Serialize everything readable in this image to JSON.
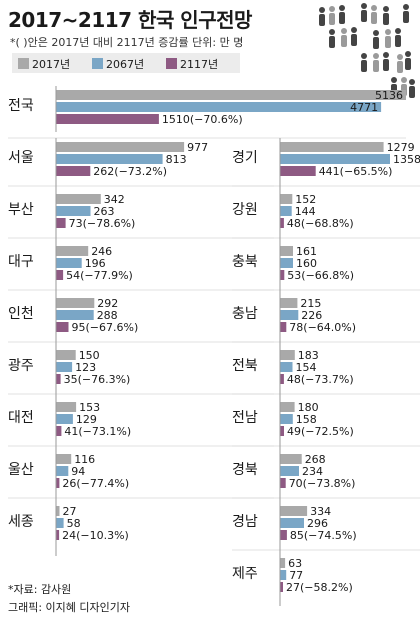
{
  "title": "2017~2117 한국 인구전망",
  "note": "*( )안은 2017년 대비 2117년 증감률 단위: 만 명",
  "legend": [
    {
      "label": "2017년",
      "color": "#a9a9a9"
    },
    {
      "label": "2067년",
      "color": "#7aa6c6"
    },
    {
      "label": "2117년",
      "color": "#8e5a83"
    }
  ],
  "footer": {
    "source": "*자료: 감사원",
    "credit": "그래픽: 이지혜 디자인기자"
  },
  "chart_data": {
    "type": "bar",
    "orientation": "horizontal",
    "series_names": [
      "2017년",
      "2067년",
      "2117년"
    ],
    "regions": [
      {
        "name": "전국",
        "values": [
          5136,
          4771,
          1510
        ],
        "change": "1510(−70.6%)"
      },
      {
        "name": "서울",
        "values": [
          977,
          813,
          262
        ],
        "change": "262(−73.2%)"
      },
      {
        "name": "부산",
        "values": [
          342,
          263,
          73
        ],
        "change": "73(−78.6%)"
      },
      {
        "name": "대구",
        "values": [
          246,
          196,
          54
        ],
        "change": "54(−77.9%)"
      },
      {
        "name": "인천",
        "values": [
          292,
          288,
          95
        ],
        "change": "95(−67.6%)"
      },
      {
        "name": "광주",
        "values": [
          150,
          123,
          35
        ],
        "change": "35(−76.3%)"
      },
      {
        "name": "대전",
        "values": [
          153,
          129,
          41
        ],
        "change": "41(−73.1%)"
      },
      {
        "name": "울산",
        "values": [
          116,
          94,
          26
        ],
        "change": "26(−77.4%)"
      },
      {
        "name": "세종",
        "values": [
          27,
          58,
          24
        ],
        "change": "24(−10.3%)"
      },
      {
        "name": "경기",
        "values": [
          1279,
          1358,
          441
        ],
        "change": "441(−65.5%)"
      },
      {
        "name": "강원",
        "values": [
          152,
          144,
          48
        ],
        "change": "48(−68.8%)"
      },
      {
        "name": "충북",
        "values": [
          161,
          160,
          53
        ],
        "change": "53(−66.8%)"
      },
      {
        "name": "충남",
        "values": [
          215,
          226,
          78
        ],
        "change": "78(−64.0%)"
      },
      {
        "name": "전북",
        "values": [
          183,
          154,
          48
        ],
        "change": "48(−73.7%)"
      },
      {
        "name": "전남",
        "values": [
          180,
          158,
          49
        ],
        "change": "49(−72.5%)"
      },
      {
        "name": "경북",
        "values": [
          268,
          234,
          70
        ],
        "change": "70(−73.8%)"
      },
      {
        "name": "경남",
        "values": [
          334,
          296,
          85
        ],
        "change": "85(−74.5%)"
      },
      {
        "name": "제주",
        "values": [
          63,
          77,
          27
        ],
        "change": "27(−58.2%)"
      }
    ]
  }
}
